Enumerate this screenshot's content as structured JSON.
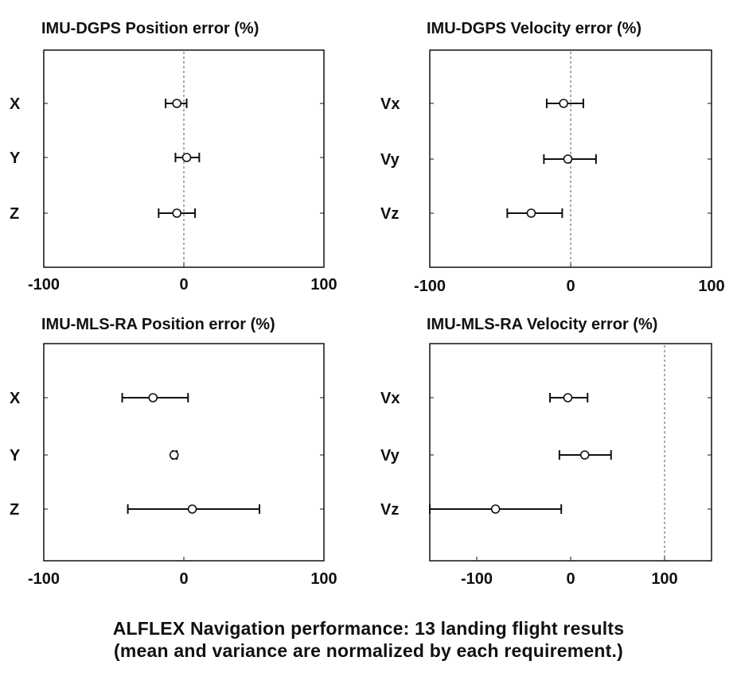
{
  "chart_data": [
    {
      "type": "errorbar",
      "title": "IMU-DGPS Position error (%)",
      "categories": [
        "X",
        "Y",
        "Z"
      ],
      "xlim": [
        -100,
        100
      ],
      "xticks": [
        "-100",
        "0",
        "100"
      ],
      "reference_line": 0,
      "series": [
        {
          "name": "X",
          "mean": -5,
          "low": -13,
          "high": 2
        },
        {
          "name": "Y",
          "mean": 2,
          "low": -6,
          "high": 11
        },
        {
          "name": "Z",
          "mean": -5,
          "low": -18,
          "high": 8
        }
      ]
    },
    {
      "type": "errorbar",
      "title": "IMU-DGPS Velocity error (%)",
      "categories": [
        "Vx",
        "Vy",
        "Vz"
      ],
      "xlim": [
        -100,
        100
      ],
      "xticks": [
        "-100",
        "0",
        "100"
      ],
      "reference_line": 0,
      "series": [
        {
          "name": "Vx",
          "mean": -5,
          "low": -17,
          "high": 9
        },
        {
          "name": "Vy",
          "mean": -2,
          "low": -19,
          "high": 18
        },
        {
          "name": "Vz",
          "mean": -28,
          "low": -45,
          "high": -6
        }
      ]
    },
    {
      "type": "errorbar",
      "title": "IMU-MLS-RA Position error (%)",
      "categories": [
        "X",
        "Y",
        "Z"
      ],
      "xlim": [
        -100,
        100
      ],
      "xticks": [
        "-100",
        "0",
        "100"
      ],
      "series": [
        {
          "name": "X",
          "mean": -22,
          "low": -44,
          "high": 3
        },
        {
          "name": "Y",
          "mean": -7,
          "low": -8,
          "high": -5
        },
        {
          "name": "Z",
          "mean": 6,
          "low": -40,
          "high": 54
        }
      ]
    },
    {
      "type": "errorbar",
      "title": "IMU-MLS-RA Velocity error (%)",
      "categories": [
        "Vx",
        "Vy",
        "Vz"
      ],
      "xlim": [
        -150,
        150
      ],
      "xticks": [
        "-100",
        "0",
        "100"
      ],
      "reference_line": 100,
      "series": [
        {
          "name": "Vx",
          "mean": -3,
          "low": -22,
          "high": 18
        },
        {
          "name": "Vy",
          "mean": 15,
          "low": -12,
          "high": 43
        },
        {
          "name": "Vz",
          "mean": -80,
          "low": -150,
          "high": -10
        }
      ]
    }
  ],
  "caption": {
    "line1": "ALFLEX Navigation performance: 13 landing flight results",
    "line2": "(mean and variance are normalized by each requirement.)"
  }
}
